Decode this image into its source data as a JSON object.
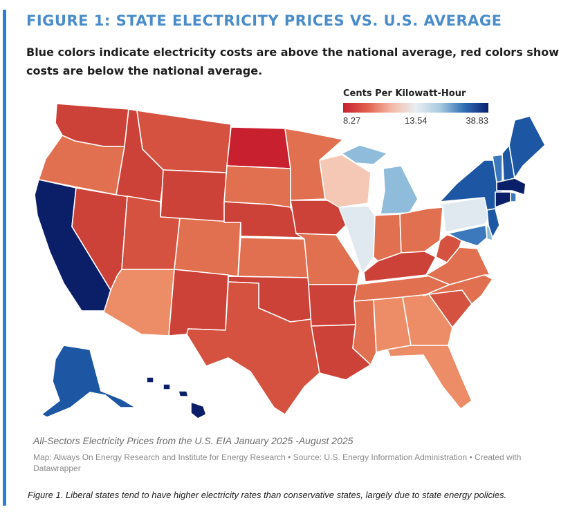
{
  "header": {
    "title": "FIGURE 1: STATE ELECTRICITY PRICES VS. U.S. AVERAGE",
    "subtitle": "Blue colors indicate electricity costs are above the national average, red colors show costs are below the national average."
  },
  "legend": {
    "title": "Cents Per Kilowatt-Hour",
    "min_label": "8.27",
    "mid_label": "13.54",
    "max_label": "38.83",
    "colors": [
      "#c8202f",
      "#e0614d",
      "#f4b9a5",
      "#e9eef2",
      "#a8cbe0",
      "#2f6fb5",
      "#0b1f6e"
    ]
  },
  "colors": {
    "accent": "#2c7fd6",
    "title": "#4a8cc9",
    "deep_red": "#c8202f",
    "red": "#cc4238",
    "orange_red": "#d4523f",
    "salmon": "#e0704f",
    "light_salmon": "#ec8d68",
    "pale_red": "#f4c8b4",
    "near_average": "#e0e9ef",
    "light_blue": "#8fbcdb",
    "mid_blue": "#3b78bc",
    "blue": "#1d56a3",
    "navy": "#0a1f68"
  },
  "map": {
    "note": "All-Sectors Electricity Prices from the U.S. EIA January 2025 -August 2025",
    "credit": "Map: Always On Energy Research and Institute for Energy Research • Source: U.S. Energy Information Administration • Created with Datawrapper"
  },
  "caption": "Figure 1. Liberal states tend to have higher electricity rates than conservative states, largely due to state energy policies."
}
